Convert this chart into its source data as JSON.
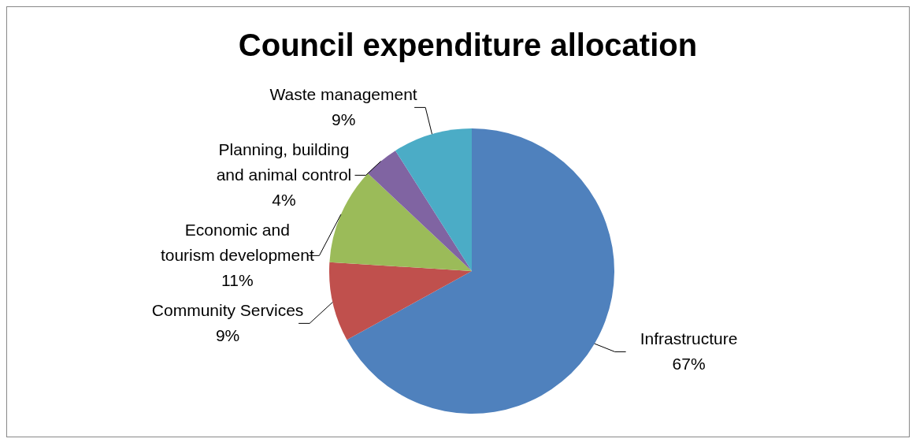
{
  "chart_data": {
    "type": "pie",
    "title": "Council expenditure allocation",
    "categories": [
      "Infrastructure",
      "Community Services",
      "Economic and tourism development",
      "Planning, building and animal control",
      "Waste management"
    ],
    "values": [
      67,
      9,
      11,
      4,
      9
    ],
    "value_labels": [
      "67%",
      "9%",
      "11%",
      "4%",
      "9%"
    ],
    "colors": [
      "#4f81bd",
      "#c0504d",
      "#9bbb59",
      "#8064a2",
      "#4bacc6"
    ]
  }
}
